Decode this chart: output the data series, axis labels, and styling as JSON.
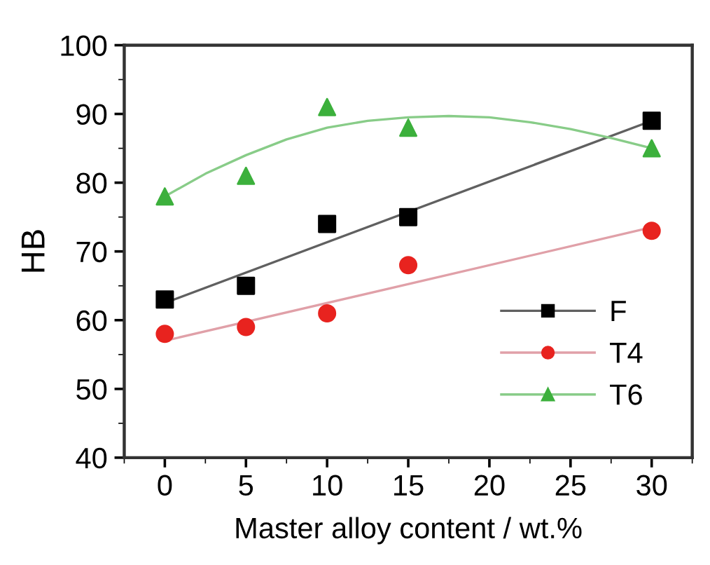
{
  "chart_data": {
    "type": "scatter",
    "xlabel": "Master alloy content / wt.%",
    "ylabel": "HB",
    "xlim": [
      -2.5,
      32.5
    ],
    "xticks": [
      0,
      5,
      10,
      15,
      20,
      25,
      30
    ],
    "ylim": [
      40,
      100
    ],
    "yticks": [
      40,
      50,
      60,
      70,
      80,
      90,
      100
    ],
    "grid": false,
    "legend": "bottom right",
    "series": [
      {
        "name": "F",
        "marker": "square",
        "color": "#000000",
        "x": [
          0,
          5,
          10,
          15,
          30
        ],
        "values": [
          63,
          65,
          74,
          75,
          89
        ]
      },
      {
        "type": "line",
        "color": "#606060",
        "x": [
          0,
          30
        ],
        "values": [
          62.5,
          89
        ]
      },
      {
        "name": "T4",
        "marker": "circle",
        "color": "#e8231f",
        "x": [
          0,
          5,
          10,
          15,
          30
        ],
        "values": [
          58,
          59,
          61,
          68,
          73
        ]
      },
      {
        "type": "line",
        "color": "#e0a0a8",
        "x": [
          0,
          30
        ],
        "values": [
          57,
          73.5
        ]
      },
      {
        "name": "T6",
        "marker": "triangle",
        "color": "#3cb03c",
        "x": [
          0,
          5,
          10,
          15,
          30
        ],
        "values": [
          78,
          81,
          91,
          88,
          85
        ]
      },
      {
        "type": "line",
        "color": "#88cc88",
        "x": [
          0,
          2.5,
          5,
          7.5,
          10,
          12.5,
          15,
          17.5,
          20,
          22.5,
          25,
          27.5,
          30
        ],
        "values": [
          78,
          81.3,
          84,
          86.3,
          88,
          89,
          89.5,
          89.7,
          89.5,
          88.8,
          87.8,
          86.5,
          85
        ]
      }
    ]
  }
}
